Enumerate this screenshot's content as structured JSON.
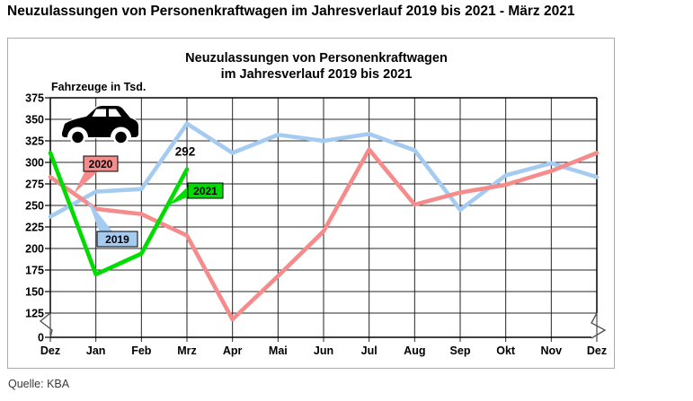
{
  "page_title": "Neuzulassungen von Personenkraftwagen im Jahresverlauf 2019 bis 2021 - März 2021",
  "source": "Quelle: KBA",
  "chart_data": {
    "type": "line",
    "title_line1": "Neuzulassungen von Personenkraftwagen",
    "title_line2": "im Jahresverlauf 2019 bis 2021",
    "unit_label": "Fahrzeuge in Tsd.",
    "categories": [
      "Dez",
      "Jan",
      "Feb",
      "Mrz",
      "Apr",
      "Mai",
      "Jun",
      "Jul",
      "Aug",
      "Sep",
      "Okt",
      "Nov",
      "Dez"
    ],
    "y_ticks": [
      375,
      350,
      325,
      300,
      275,
      250,
      225,
      200,
      175,
      150,
      125,
      0
    ],
    "ylim": [
      0,
      375
    ],
    "axis_break_between": [
      0,
      125
    ],
    "grid": true,
    "series": [
      {
        "name": "2019",
        "label": "2019",
        "color": "#A5CBF1",
        "values": [
          237,
          266,
          269,
          345,
          311,
          332,
          325,
          333,
          314,
          245,
          285,
          299,
          283
        ]
      },
      {
        "name": "2020",
        "label": "2020",
        "color": "#F58B8B",
        "values": [
          283,
          246,
          240,
          215,
          121,
          168,
          220,
          315,
          251,
          265,
          274,
          290,
          311
        ]
      },
      {
        "name": "2021",
        "label": "2021",
        "color": "#00DC00",
        "values": [
          311,
          170,
          194,
          292
        ]
      }
    ],
    "annotation": {
      "text": "292",
      "series": "2021",
      "point_index": 3
    },
    "icon": "car-icon"
  }
}
